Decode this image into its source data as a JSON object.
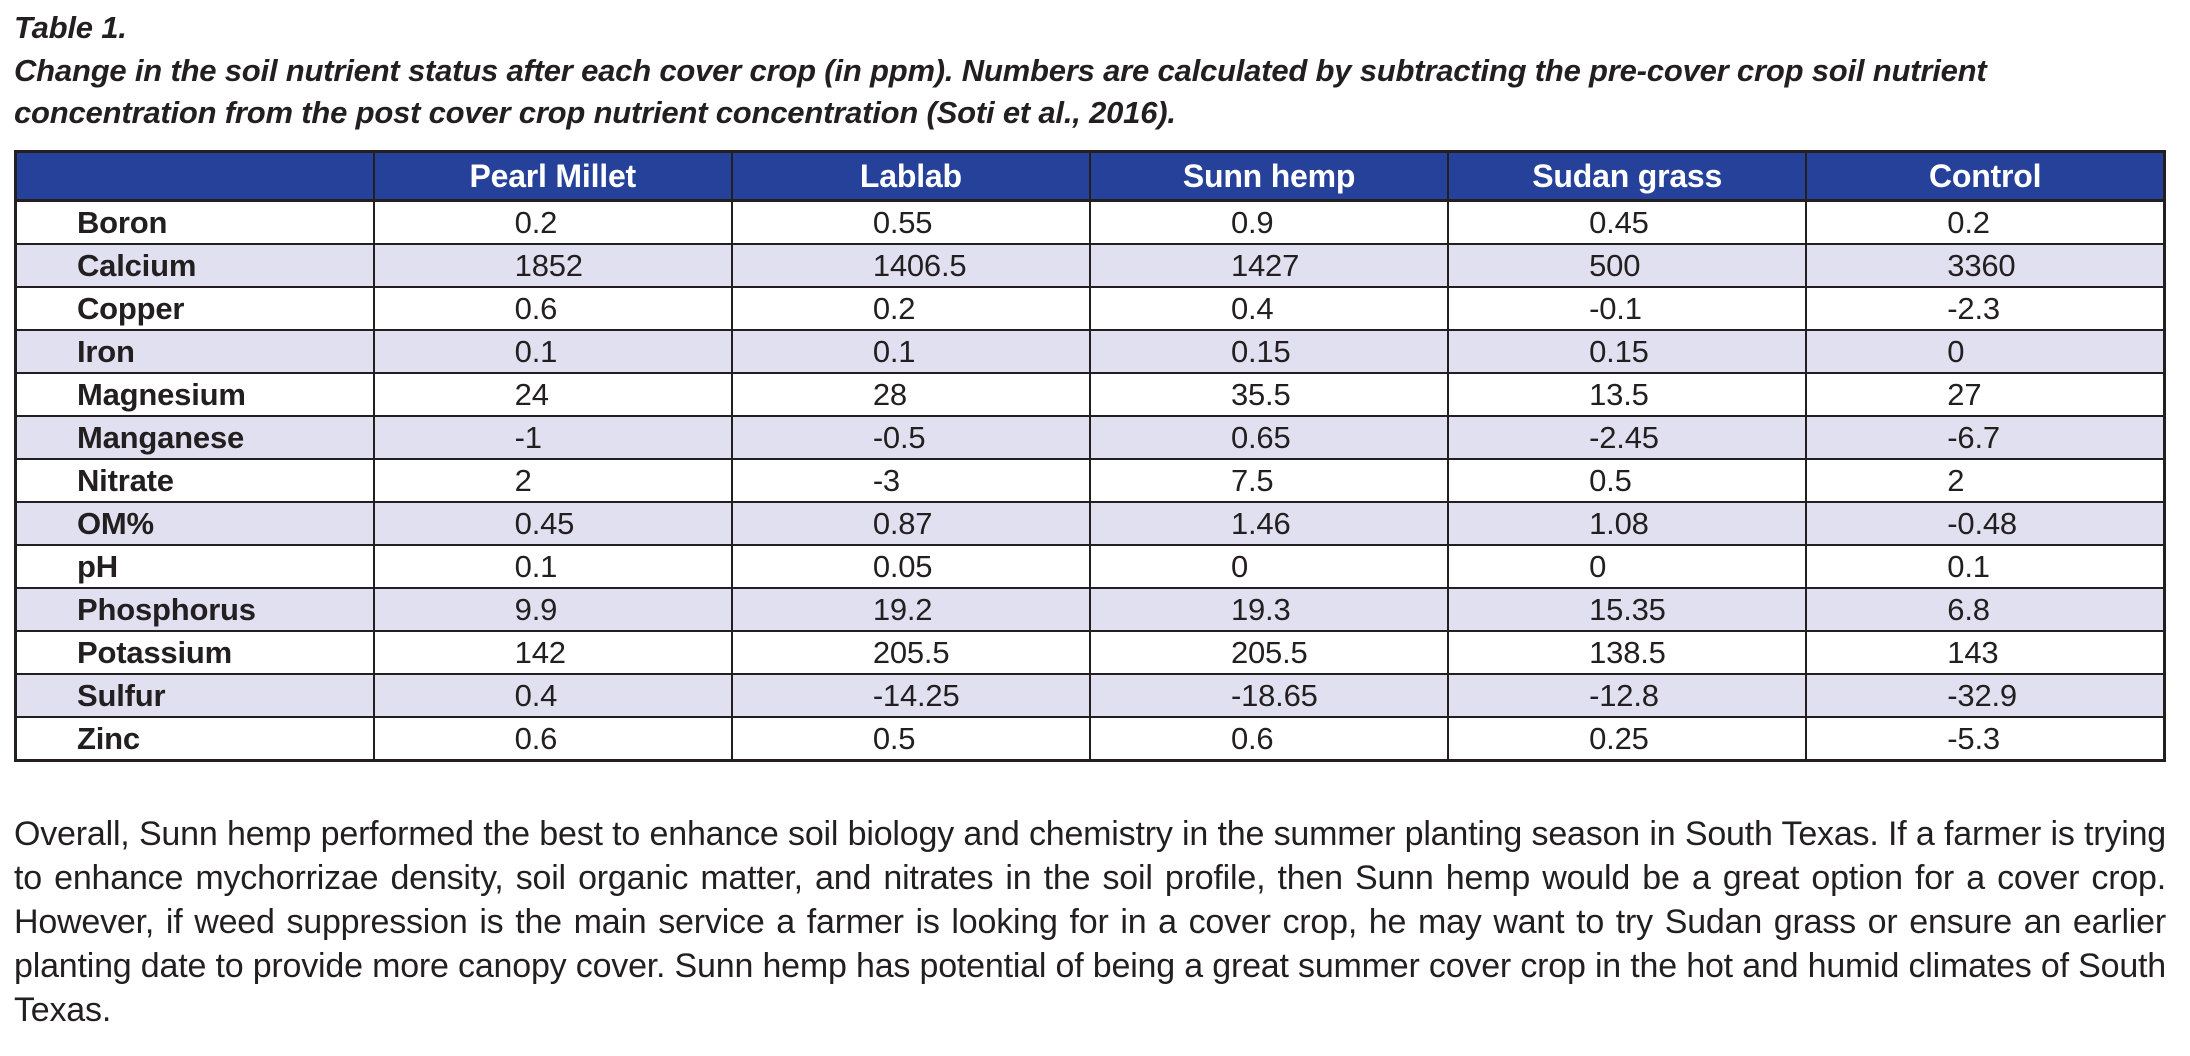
{
  "document": {
    "title": "Table 1.",
    "caption": "Change in the soil nutrient status after each cover crop (in ppm). Numbers are calculated by subtracting the pre-cover crop soil nutrient concentration from the post cover crop nutrient concentration (Soti et al., 2016).",
    "summary": "Overall, Sunn hemp performed the best to enhance soil biology and chemistry in the summer planting season in South Texas. If a farmer is trying to enhance mychorrizae density, soil organic matter, and nitrates in the soil profile, then Sunn hemp would be a great option for a cover crop. However, if weed suppression is the main service a farmer is looking for in a cover crop, he may want to try Sudan grass or ensure an earlier planting date to provide more canopy cover. Sunn hemp has potential of being a great summer cover crop in the hot and humid climates of South Texas."
  },
  "table": {
    "columns": [
      "",
      "Pearl Millet",
      "Lablab",
      "Sunn hemp",
      "Sudan grass",
      "Control"
    ],
    "rows": [
      {
        "label": "Boron",
        "values": [
          "0.2",
          "0.55",
          "0.9",
          "0.45",
          "0.2"
        ]
      },
      {
        "label": "Calcium",
        "values": [
          "1852",
          "1406.5",
          "1427",
          "500",
          "3360"
        ]
      },
      {
        "label": "Copper",
        "values": [
          "0.6",
          "0.2",
          "0.4",
          "-0.1",
          "-2.3"
        ]
      },
      {
        "label": "Iron",
        "values": [
          "0.1",
          "0.1",
          "0.15",
          "0.15",
          "0"
        ]
      },
      {
        "label": "Magnesium",
        "values": [
          "24",
          "28",
          "35.5",
          "13.5",
          "27"
        ]
      },
      {
        "label": "Manganese",
        "values": [
          "-1",
          "-0.5",
          "0.65",
          "-2.45",
          "-6.7"
        ]
      },
      {
        "label": "Nitrate",
        "values": [
          "2",
          "-3",
          "7.5",
          "0.5",
          "2"
        ]
      },
      {
        "label": "OM%",
        "values": [
          "0.45",
          "0.87",
          "1.46",
          "1.08",
          "-0.48"
        ]
      },
      {
        "label": "pH",
        "values": [
          "0.1",
          "0.05",
          "0",
          "0",
          "0.1"
        ]
      },
      {
        "label": "Phosphorus",
        "values": [
          "9.9",
          "19.2",
          "19.3",
          "15.35",
          "6.8"
        ]
      },
      {
        "label": "Potassium",
        "values": [
          "142",
          "205.5",
          "205.5",
          "138.5",
          "143"
        ]
      },
      {
        "label": "Sulfur",
        "values": [
          "0.4",
          "-14.25",
          "-18.65",
          "-12.8",
          "-32.9"
        ]
      },
      {
        "label": "Zinc",
        "values": [
          "0.6",
          "0.5",
          "0.6",
          "0.25",
          "-5.3"
        ]
      }
    ]
  },
  "colors": {
    "header_bg": "#26419a",
    "header_text": "#ffffff",
    "alt_row_bg": "#e1e0f0",
    "border": "#231f20",
    "text": "#231f20"
  }
}
